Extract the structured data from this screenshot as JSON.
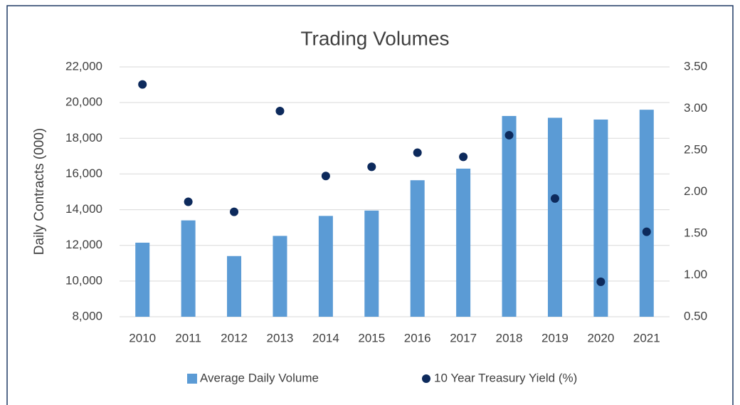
{
  "chart_data": {
    "type": "combo",
    "title": "Trading Volumes",
    "y_label": "Daily Contracts (000)",
    "categories": [
      "2010",
      "2011",
      "2012",
      "2013",
      "2014",
      "2015",
      "2016",
      "2017",
      "2018",
      "2019",
      "2020",
      "2021"
    ],
    "series": [
      {
        "name": "Average Daily Volume",
        "type": "bar",
        "color": "#5b9bd5",
        "axis": "y",
        "values": [
          12150,
          13400,
          11400,
          12530,
          13650,
          13950,
          15650,
          16300,
          19250,
          19150,
          19050,
          19600
        ]
      },
      {
        "name": "10 Year Treasury Yield (%)",
        "type": "scatter",
        "color": "#0d2a5c",
        "axis": "y2",
        "values": [
          3.29,
          1.88,
          1.76,
          2.97,
          2.19,
          2.3,
          2.47,
          2.42,
          2.68,
          1.92,
          0.92,
          1.52
        ]
      }
    ],
    "ylim": [
      8000,
      22000
    ],
    "yticks": [
      {
        "value": 8000,
        "label": "8,000"
      },
      {
        "value": 10000,
        "label": "10,000"
      },
      {
        "value": 12000,
        "label": "12,000"
      },
      {
        "value": 14000,
        "label": "14,000"
      },
      {
        "value": 16000,
        "label": "16,000"
      },
      {
        "value": 18000,
        "label": "18,000"
      },
      {
        "value": 20000,
        "label": "20,000"
      },
      {
        "value": 22000,
        "label": "22,000"
      }
    ],
    "y2lim": [
      0.5,
      3.5
    ],
    "y2ticks": [
      {
        "value": 0.5,
        "label": "0.50"
      },
      {
        "value": 1.0,
        "label": "1.00"
      },
      {
        "value": 1.5,
        "label": "1.50"
      },
      {
        "value": 2.0,
        "label": "2.00"
      },
      {
        "value": 2.5,
        "label": "2.50"
      },
      {
        "value": 3.0,
        "label": "3.00"
      },
      {
        "value": 3.5,
        "label": "3.50"
      }
    ],
    "grid": true,
    "legend": "bottom"
  }
}
